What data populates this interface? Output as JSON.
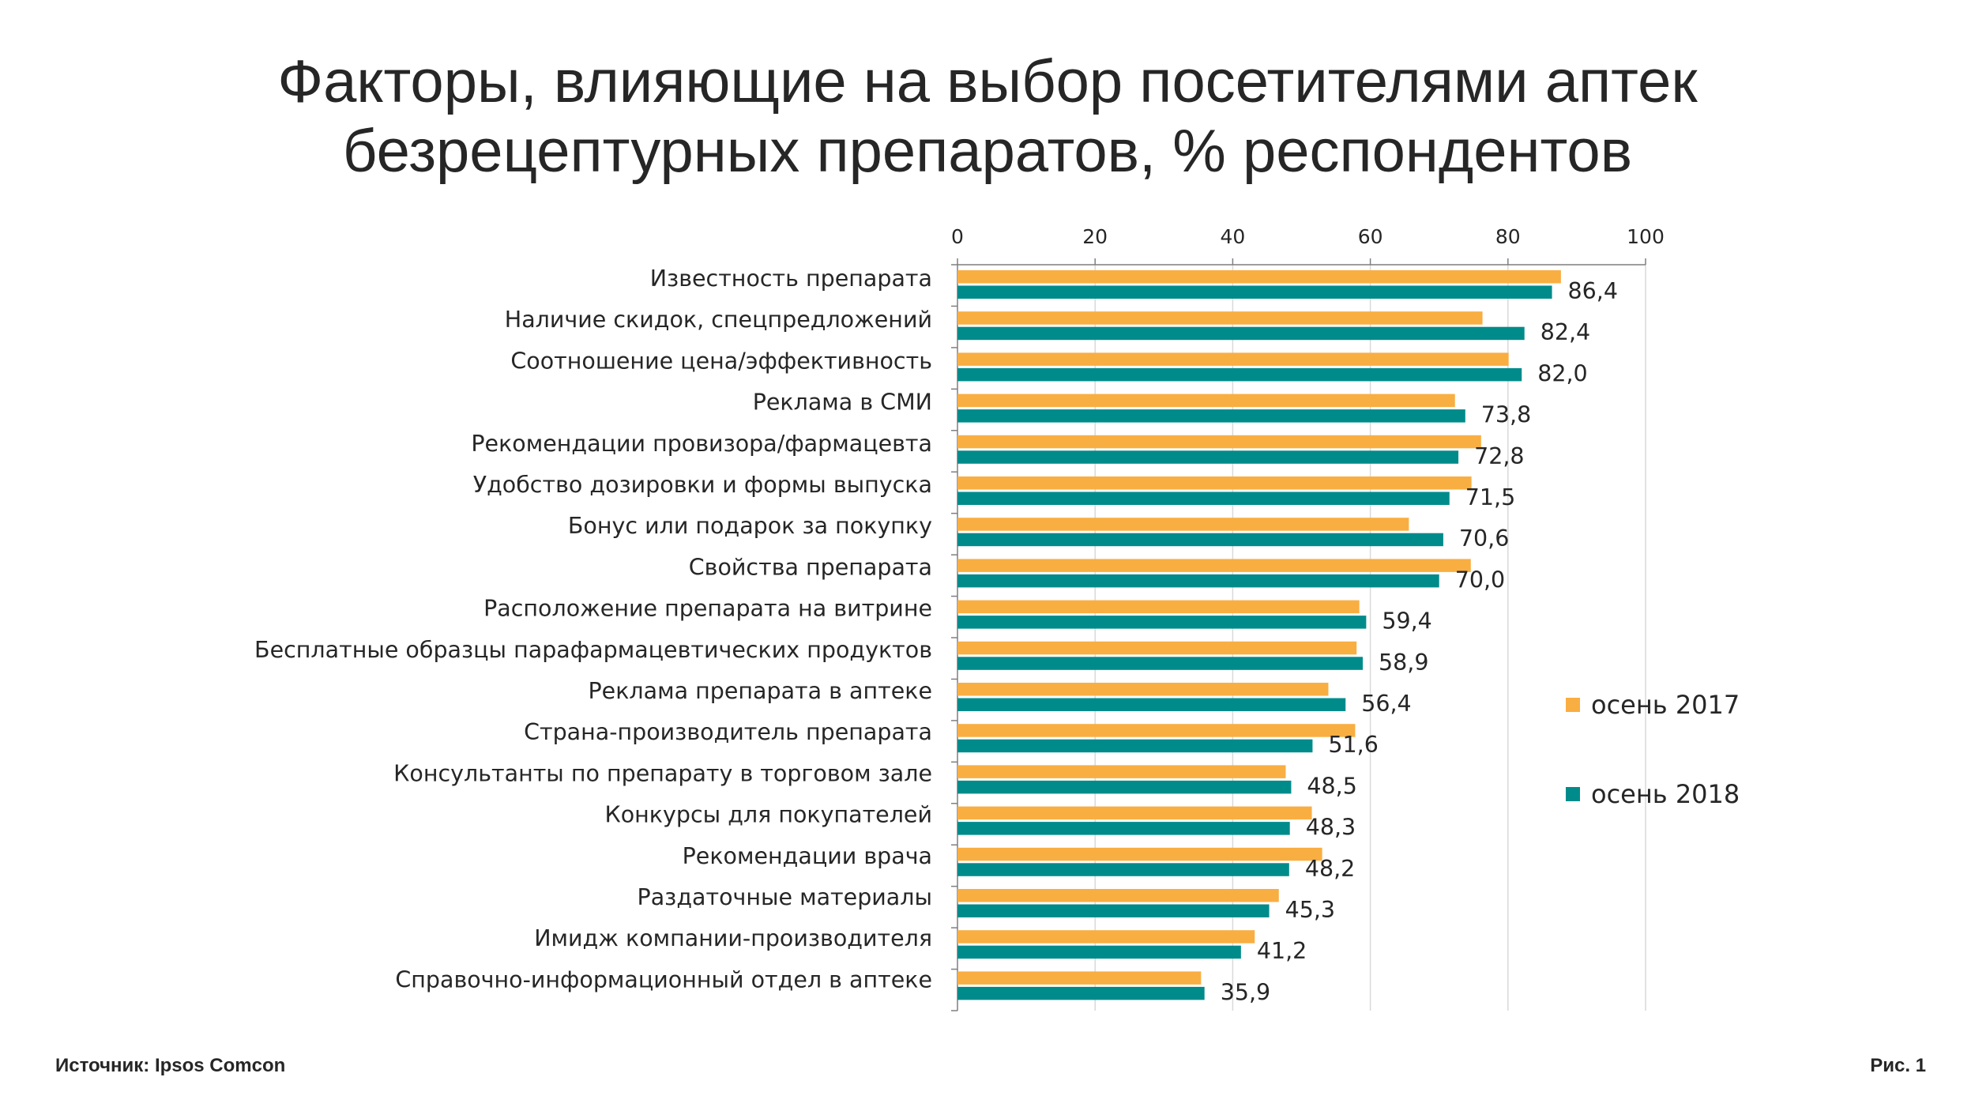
{
  "title": {
    "line1": "Факторы, влияющие на выбор посетителями аптек",
    "line2": "безрецептурных препаратов, % респондентов"
  },
  "source": "Источник: Ipsos Comcon",
  "figure_label": "Рис. 1",
  "colors": {
    "autumn_2017": "#F9AE42",
    "autumn_2018": "#008B8B",
    "grid": "#D9D9D9",
    "axis": "#7F7F7F",
    "text": "#262626"
  },
  "chart_data": {
    "type": "bar",
    "orientation": "horizontal",
    "title": "Факторы, влияющие на выбор посетителями аптек безрецептурных препаратов, % респондентов",
    "xlabel": "",
    "ylabel": "",
    "xlim": [
      0,
      100
    ],
    "x_ticks": [
      0,
      20,
      40,
      60,
      80,
      100
    ],
    "x_axis_position": "top",
    "grid": true,
    "legend_position": "right",
    "categories": [
      "Известность препарата",
      "Наличие скидок, спецпредложений",
      "Соотношение цена/эффективность",
      "Реклама в СМИ",
      "Рекомендации провизора/фармацевта",
      "Удобство дозировки и формы выпуска",
      "Бонус или подарок за покупку",
      "Свойства препарата",
      "Расположение препарата на витрине",
      "Бесплатные образцы парафармацевтических продуктов",
      "Реклама препарата в аптеке",
      "Страна-производитель препарата",
      "Консультанты по препарату в торговом зале",
      "Конкурсы для покупателей",
      "Рекомендации врача",
      "Раздаточные материалы",
      "Имидж компании-производителя",
      "Справочно-информационный отдел в аптеке"
    ],
    "series": [
      {
        "name": "осень 2017",
        "values": [
          87.7,
          76.3,
          80.1,
          72.3,
          76.1,
          74.7,
          65.6,
          74.6,
          58.4,
          58.0,
          53.9,
          57.8,
          47.7,
          51.5,
          53.0,
          46.7,
          43.2,
          35.4
        ]
      },
      {
        "name": "осень 2018",
        "values": [
          86.4,
          82.4,
          82.0,
          73.8,
          72.8,
          71.5,
          70.6,
          70.0,
          59.4,
          58.9,
          56.4,
          51.6,
          48.5,
          48.3,
          48.2,
          45.3,
          41.2,
          35.9
        ],
        "data_labels": [
          "86,4",
          "82,4",
          "82,0",
          "73,8",
          "72,8",
          "71,5",
          "70,6",
          "70,0",
          "59,4",
          "58,9",
          "56,4",
          "51,6",
          "48,5",
          "48,3",
          "48,2",
          "45,3",
          "41,2",
          "35,9"
        ]
      }
    ]
  }
}
